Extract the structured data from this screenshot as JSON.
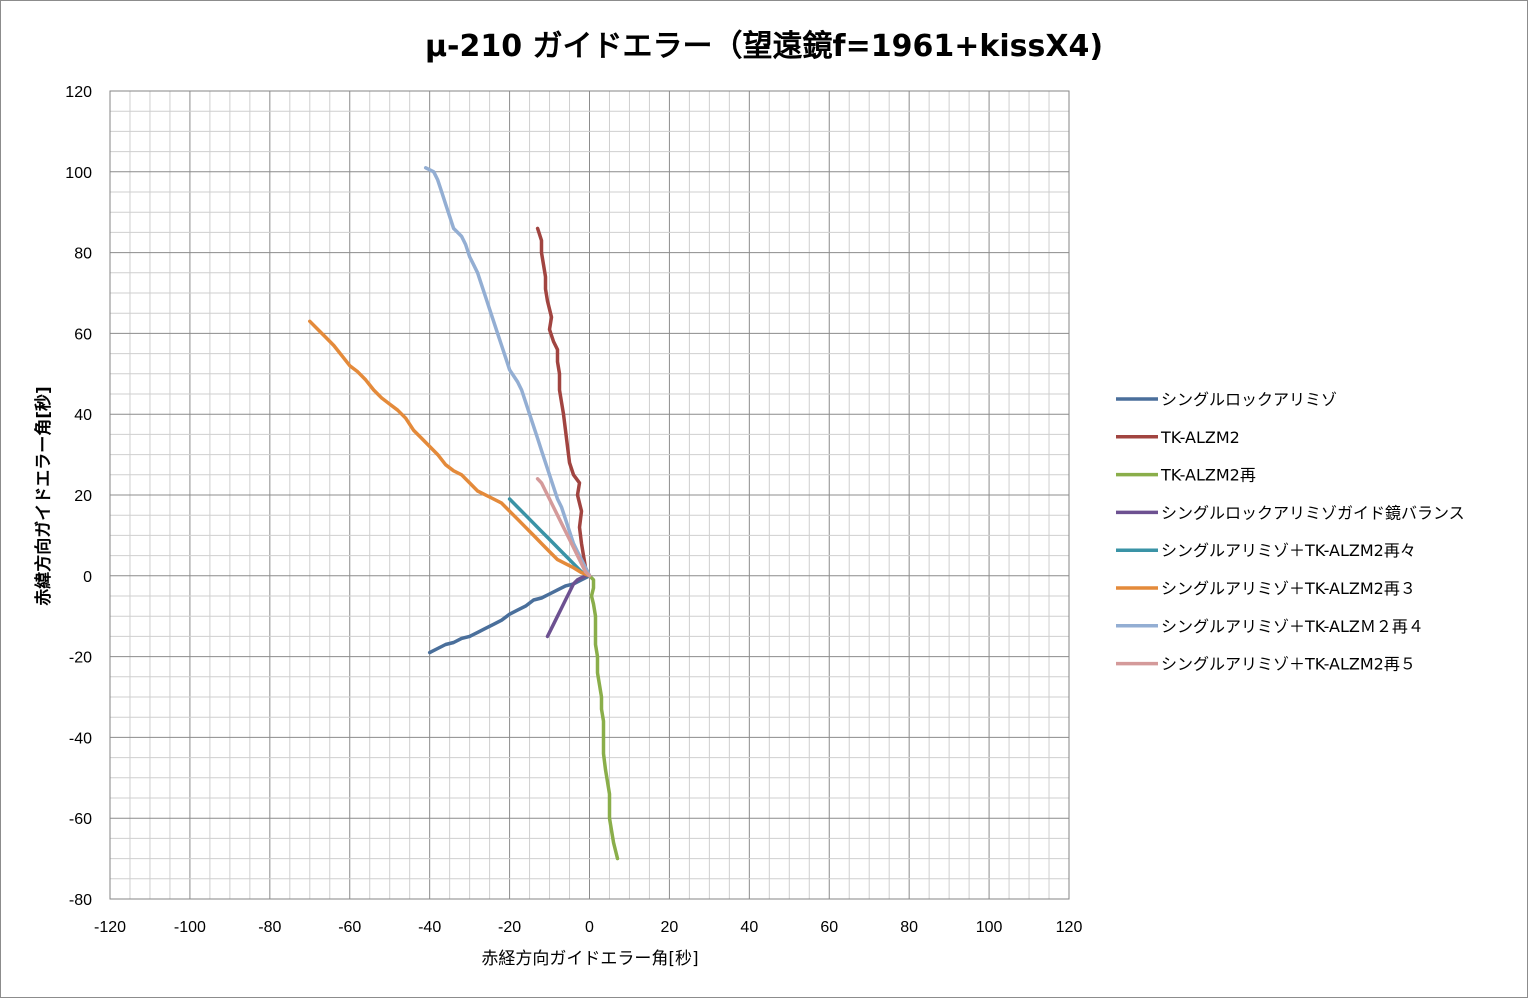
{
  "chart_data": {
    "type": "line",
    "title": "μ-210 ガイドエラー（望遠鏡f=1961+kissX4)",
    "xlabel": "赤経方向ガイドエラー角[秒]",
    "ylabel": "赤緯方向ガイドエラー角[秒]",
    "xlim": [
      -120,
      120
    ],
    "ylim": [
      -80,
      120
    ],
    "x_ticks": [
      "-120",
      "-100",
      "-80",
      "-60",
      "-40",
      "-20",
      "0",
      "20",
      "40",
      "60",
      "80",
      "100",
      "120"
    ],
    "y_ticks": [
      "120",
      "100",
      "80",
      "60",
      "40",
      "20",
      "0",
      "-20",
      "-40",
      "-60",
      "-80"
    ],
    "grid": true,
    "legend_position": "right",
    "series": [
      {
        "name": "シングルロックアリミゾ",
        "color": "#4a6f9b",
        "points": [
          [
            0,
            0
          ],
          [
            -2,
            -1
          ],
          [
            -4,
            -2
          ],
          [
            -6,
            -2.5
          ],
          [
            -8,
            -3.5
          ],
          [
            -10,
            -4.5
          ],
          [
            -12,
            -5.5
          ],
          [
            -14,
            -6
          ],
          [
            -16,
            -7.5
          ],
          [
            -18,
            -8.5
          ],
          [
            -20,
            -9.5
          ],
          [
            -22,
            -11
          ],
          [
            -24,
            -12
          ],
          [
            -26,
            -13
          ],
          [
            -28,
            -14
          ],
          [
            -30,
            -15
          ],
          [
            -32,
            -15.5
          ],
          [
            -34,
            -16.5
          ],
          [
            -36,
            -17
          ],
          [
            -38,
            -18
          ],
          [
            -40,
            -19
          ]
        ]
      },
      {
        "name": "TK-ALZM2",
        "color": "#a14440",
        "points": [
          [
            0,
            0
          ],
          [
            -1,
            2
          ],
          [
            -1.5,
            5
          ],
          [
            -2,
            8
          ],
          [
            -2.5,
            12
          ],
          [
            -2,
            16
          ],
          [
            -3,
            20
          ],
          [
            -2.5,
            23
          ],
          [
            -4,
            25
          ],
          [
            -5,
            28
          ],
          [
            -5.5,
            32
          ],
          [
            -6,
            36
          ],
          [
            -6.5,
            40
          ],
          [
            -7,
            43
          ],
          [
            -7.5,
            46
          ],
          [
            -7.5,
            50
          ],
          [
            -8,
            53
          ],
          [
            -8,
            56
          ],
          [
            -9,
            58
          ],
          [
            -10,
            61
          ],
          [
            -9.5,
            64
          ],
          [
            -10.5,
            68
          ],
          [
            -11,
            71
          ],
          [
            -11,
            74
          ],
          [
            -11.5,
            77
          ],
          [
            -12,
            80
          ],
          [
            -12,
            83
          ],
          [
            -13,
            86
          ]
        ]
      },
      {
        "name": "TK-ALZM2再",
        "color": "#8aae4a",
        "points": [
          [
            0,
            0
          ],
          [
            1,
            -1
          ],
          [
            1,
            -3
          ],
          [
            0.5,
            -5
          ],
          [
            1,
            -7
          ],
          [
            1.5,
            -10
          ],
          [
            1.5,
            -13
          ],
          [
            1.5,
            -17
          ],
          [
            2,
            -20
          ],
          [
            2,
            -24
          ],
          [
            2.5,
            -27
          ],
          [
            3,
            -30
          ],
          [
            3,
            -33
          ],
          [
            3.5,
            -36
          ],
          [
            3.5,
            -40
          ],
          [
            3.5,
            -44
          ],
          [
            4,
            -48
          ],
          [
            4.5,
            -51
          ],
          [
            5,
            -54
          ],
          [
            5,
            -57
          ],
          [
            5,
            -60
          ],
          [
            5.5,
            -63
          ],
          [
            6,
            -66
          ],
          [
            6.5,
            -68
          ],
          [
            7,
            -70
          ]
        ]
      },
      {
        "name": "シングルロックアリミゾガイド鏡バランス",
        "color": "#6d5191",
        "points": [
          [
            -1,
            0
          ],
          [
            -3,
            -1
          ],
          [
            -4,
            -2
          ],
          [
            -5,
            -4
          ],
          [
            -6,
            -6
          ],
          [
            -7,
            -8
          ],
          [
            -8,
            -10
          ],
          [
            -9,
            -12
          ],
          [
            -10,
            -14
          ],
          [
            -10.5,
            -15
          ]
        ]
      },
      {
        "name": "シングルアリミゾ＋TK-ALZM2再々",
        "color": "#3a93a6",
        "points": [
          [
            0,
            0
          ],
          [
            -2,
            1
          ],
          [
            -4,
            3
          ],
          [
            -6,
            5
          ],
          [
            -8,
            7
          ],
          [
            -10,
            9
          ],
          [
            -12,
            11
          ],
          [
            -14,
            13
          ],
          [
            -16,
            15
          ],
          [
            -18,
            17
          ],
          [
            -20,
            19
          ]
        ]
      },
      {
        "name": "シングルアリミゾ＋TK-ALZM2再３",
        "color": "#e48a3a",
        "points": [
          [
            0,
            0
          ],
          [
            -2,
            0.8
          ],
          [
            -4,
            2
          ],
          [
            -6,
            3
          ],
          [
            -8,
            4
          ],
          [
            -10,
            6
          ],
          [
            -12,
            8
          ],
          [
            -14,
            10
          ],
          [
            -16,
            12
          ],
          [
            -18,
            14
          ],
          [
            -20,
            16
          ],
          [
            -22,
            18
          ],
          [
            -25,
            19.5
          ],
          [
            -28,
            21
          ],
          [
            -30,
            23
          ],
          [
            -32,
            25
          ],
          [
            -34,
            26
          ],
          [
            -36,
            27.5
          ],
          [
            -38,
            30
          ],
          [
            -40,
            32
          ],
          [
            -42,
            34
          ],
          [
            -44,
            36
          ],
          [
            -46,
            39
          ],
          [
            -48,
            41
          ],
          [
            -50,
            42.5
          ],
          [
            -52,
            44
          ],
          [
            -54,
            46
          ],
          [
            -56,
            48.5
          ],
          [
            -58,
            50.5
          ],
          [
            -60,
            52
          ],
          [
            -62,
            54.5
          ],
          [
            -64,
            57
          ],
          [
            -66,
            59
          ],
          [
            -68,
            61
          ],
          [
            -70,
            63
          ]
        ]
      },
      {
        "name": "シングルアリミゾ＋TK-ALZＭ２再４",
        "color": "#93aed3",
        "points": [
          [
            0,
            0
          ],
          [
            -1,
            2
          ],
          [
            -2,
            4
          ],
          [
            -3,
            6
          ],
          [
            -4,
            8
          ],
          [
            -5,
            11
          ],
          [
            -6,
            14
          ],
          [
            -7,
            17
          ],
          [
            -8,
            19
          ],
          [
            -9,
            22
          ],
          [
            -10,
            25
          ],
          [
            -11,
            28
          ],
          [
            -12,
            31
          ],
          [
            -13,
            34
          ],
          [
            -14,
            37
          ],
          [
            -15,
            40
          ],
          [
            -16,
            43
          ],
          [
            -17,
            46
          ],
          [
            -18,
            48
          ],
          [
            -20,
            51
          ],
          [
            -21,
            54
          ],
          [
            -22,
            57
          ],
          [
            -23,
            60
          ],
          [
            -24,
            63
          ],
          [
            -25,
            66
          ],
          [
            -26,
            69
          ],
          [
            -27,
            72
          ],
          [
            -28,
            75
          ],
          [
            -29,
            77
          ],
          [
            -30,
            79
          ],
          [
            -31,
            82
          ],
          [
            -32,
            84
          ],
          [
            -34,
            86
          ],
          [
            -35,
            89
          ],
          [
            -36,
            92
          ],
          [
            -37,
            95
          ],
          [
            -38,
            98
          ],
          [
            -39,
            100
          ],
          [
            -41,
            101
          ]
        ]
      },
      {
        "name": "シングルアリミゾ＋TK-ALZM2再５",
        "color": "#d49a9a",
        "points": [
          [
            0,
            0
          ],
          [
            -1,
            1
          ],
          [
            -2,
            3
          ],
          [
            -3,
            5
          ],
          [
            -4,
            7
          ],
          [
            -5,
            9
          ],
          [
            -6,
            11
          ],
          [
            -7,
            13
          ],
          [
            -8,
            15
          ],
          [
            -9,
            17
          ],
          [
            -10,
            19
          ],
          [
            -11,
            21
          ],
          [
            -12,
            23
          ],
          [
            -13,
            24
          ]
        ]
      }
    ]
  }
}
